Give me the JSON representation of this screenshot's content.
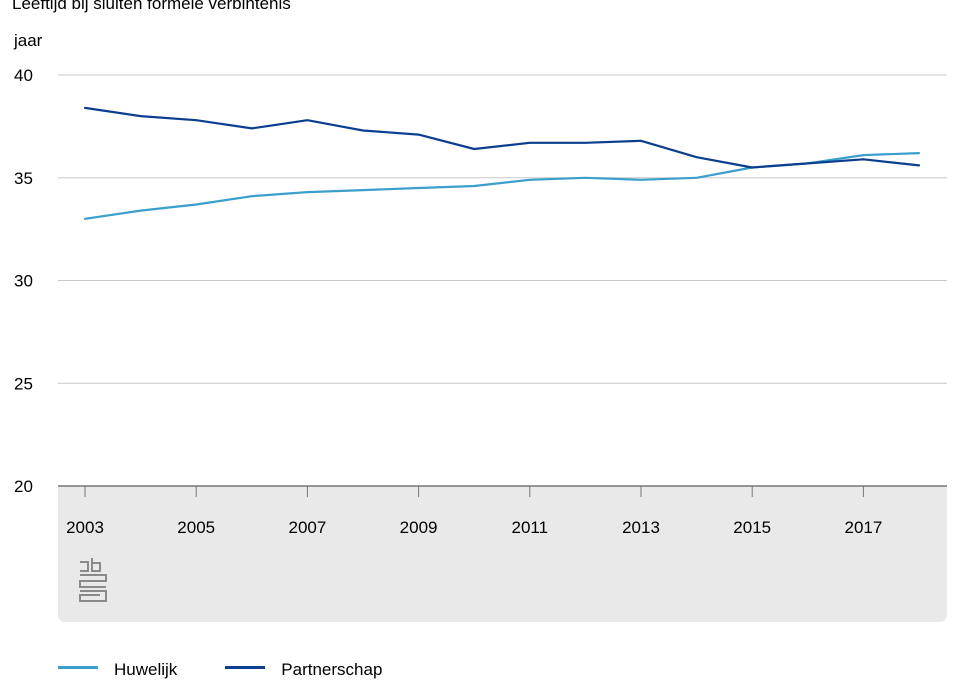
{
  "title": "Leeftijd bij sluiten formele verbintenis",
  "unit_label": "jaar",
  "colors": {
    "huwelijk": "#3a9fcb",
    "partnerschap": "#0b3e8e",
    "grid": "#c8c8c8",
    "axis_panel": "#e9e9e9",
    "axis_line": "#777777"
  },
  "logo_icon": "cbs-logo-icon",
  "legend": [
    {
      "name": "Huwelijk",
      "color": "#3a9fcb"
    },
    {
      "name": "Partnerschap",
      "color": "#0b3e8e"
    }
  ],
  "chart_data": {
    "type": "line",
    "title": "Leeftijd bij sluiten formele verbintenis",
    "ylabel": "jaar",
    "xlabel": "",
    "ylim": [
      20,
      40
    ],
    "yticks": [
      20,
      25,
      30,
      35,
      40
    ],
    "xlim": [
      2003,
      2018
    ],
    "xticks": [
      2003,
      2005,
      2007,
      2009,
      2011,
      2013,
      2015,
      2017
    ],
    "grid": true,
    "legend_position": "bottom",
    "x": [
      2003,
      2004,
      2005,
      2006,
      2007,
      2008,
      2009,
      2010,
      2011,
      2012,
      2013,
      2014,
      2015,
      2016,
      2017,
      2018
    ],
    "series": [
      {
        "name": "Huwelijk",
        "color": "#3a9fcb",
        "values": [
          33.0,
          33.4,
          33.7,
          34.1,
          34.3,
          34.4,
          34.5,
          34.6,
          34.9,
          35.0,
          34.9,
          35.0,
          35.5,
          35.7,
          36.1,
          36.2
        ]
      },
      {
        "name": "Partnerschap",
        "color": "#0b3e8e",
        "values": [
          38.4,
          38.0,
          37.8,
          37.4,
          37.8,
          37.3,
          37.1,
          36.4,
          36.7,
          36.7,
          36.8,
          36.0,
          35.5,
          35.7,
          35.9,
          35.6
        ]
      }
    ]
  }
}
